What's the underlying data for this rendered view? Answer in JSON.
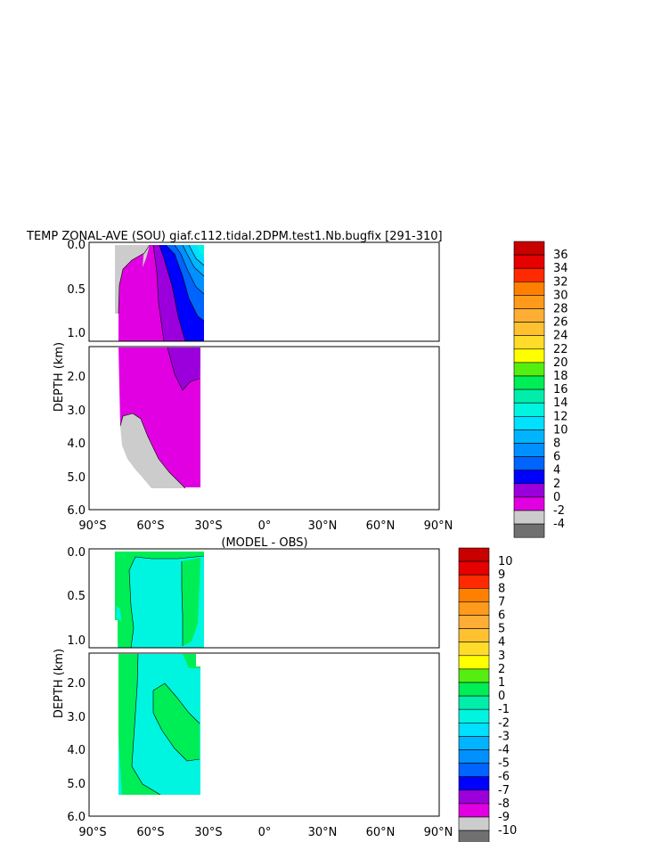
{
  "chart_data": [
    {
      "type": "heatmap",
      "title": "TEMP ZONAL-AVE (SOU) giaf.c112.tidal.2DPM.test1.Nb.bugfix [291-310]",
      "ylabel": "DEPTH (km)",
      "y_ticks": [
        "0.0",
        "0.5",
        "1.0",
        "2.0",
        "3.0",
        "4.0",
        "5.0",
        "6.0"
      ],
      "x_ticks": [
        "90°S",
        "60°S",
        "30°S",
        "0°",
        "30°N",
        "60°N",
        "90°N"
      ],
      "xlim": [
        -90,
        90
      ],
      "ylim_upper_km": [
        0,
        1.1
      ],
      "ylim_lower_km": [
        1.1,
        6.0
      ],
      "colorbar": {
        "levels": [
          "36",
          "34",
          "32",
          "30",
          "28",
          "26",
          "24",
          "22",
          "20",
          "18",
          "16",
          "14",
          "12",
          "10",
          "8",
          "6",
          "4",
          "2",
          "0",
          "-2",
          "-4"
        ],
        "colors": [
          "#c80000",
          "#e60000",
          "#ff2a00",
          "#ff8000",
          "#ff9a1a",
          "#ffae35",
          "#ffc130",
          "#ffdc2a",
          "#ffff00",
          "#55ee11",
          "#00ee55",
          "#00eeaa",
          "#00f5e0",
          "#00e0ff",
          "#00b4ff",
          "#0090ff",
          "#0064ff",
          "#0000ff",
          "#9b00dc",
          "#e100e1",
          "#cccccc",
          "#707070"
        ]
      },
      "coverage": "data between about 75°S and 35°S; surface to about 5.4 km"
    },
    {
      "type": "heatmap",
      "title": "(MODEL - OBS)",
      "ylabel": "DEPTH (km)",
      "y_ticks": [
        "0.0",
        "0.5",
        "1.0",
        "2.0",
        "3.0",
        "4.0",
        "5.0",
        "6.0"
      ],
      "x_ticks": [
        "90°S",
        "60°S",
        "30°S",
        "0°",
        "30°N",
        "60°N",
        "90°N"
      ],
      "xlim": [
        -90,
        90
      ],
      "ylim_upper_km": [
        0,
        1.1
      ],
      "ylim_lower_km": [
        1.1,
        6.0
      ],
      "colorbar": {
        "levels": [
          "10",
          "9",
          "8",
          "7",
          "6",
          "5",
          "4",
          "3",
          "2",
          "1",
          "0",
          "-1",
          "-2",
          "-3",
          "-4",
          "-5",
          "-6",
          "-7",
          "-8",
          "-9",
          "-10"
        ],
        "colors": [
          "#c80000",
          "#e60000",
          "#ff2a00",
          "#ff8000",
          "#ff9a1a",
          "#ffae35",
          "#ffc130",
          "#ffdc2a",
          "#ffff00",
          "#55ee11",
          "#00ee55",
          "#00eeaa",
          "#00f5e0",
          "#00e0ff",
          "#00b4ff",
          "#0090ff",
          "#0064ff",
          "#0000ff",
          "#9b00dc",
          "#e100e1",
          "#cccccc",
          "#707070"
        ]
      },
      "coverage": "data between about 75°S and 35°S; surface to about 5.4 km"
    }
  ]
}
